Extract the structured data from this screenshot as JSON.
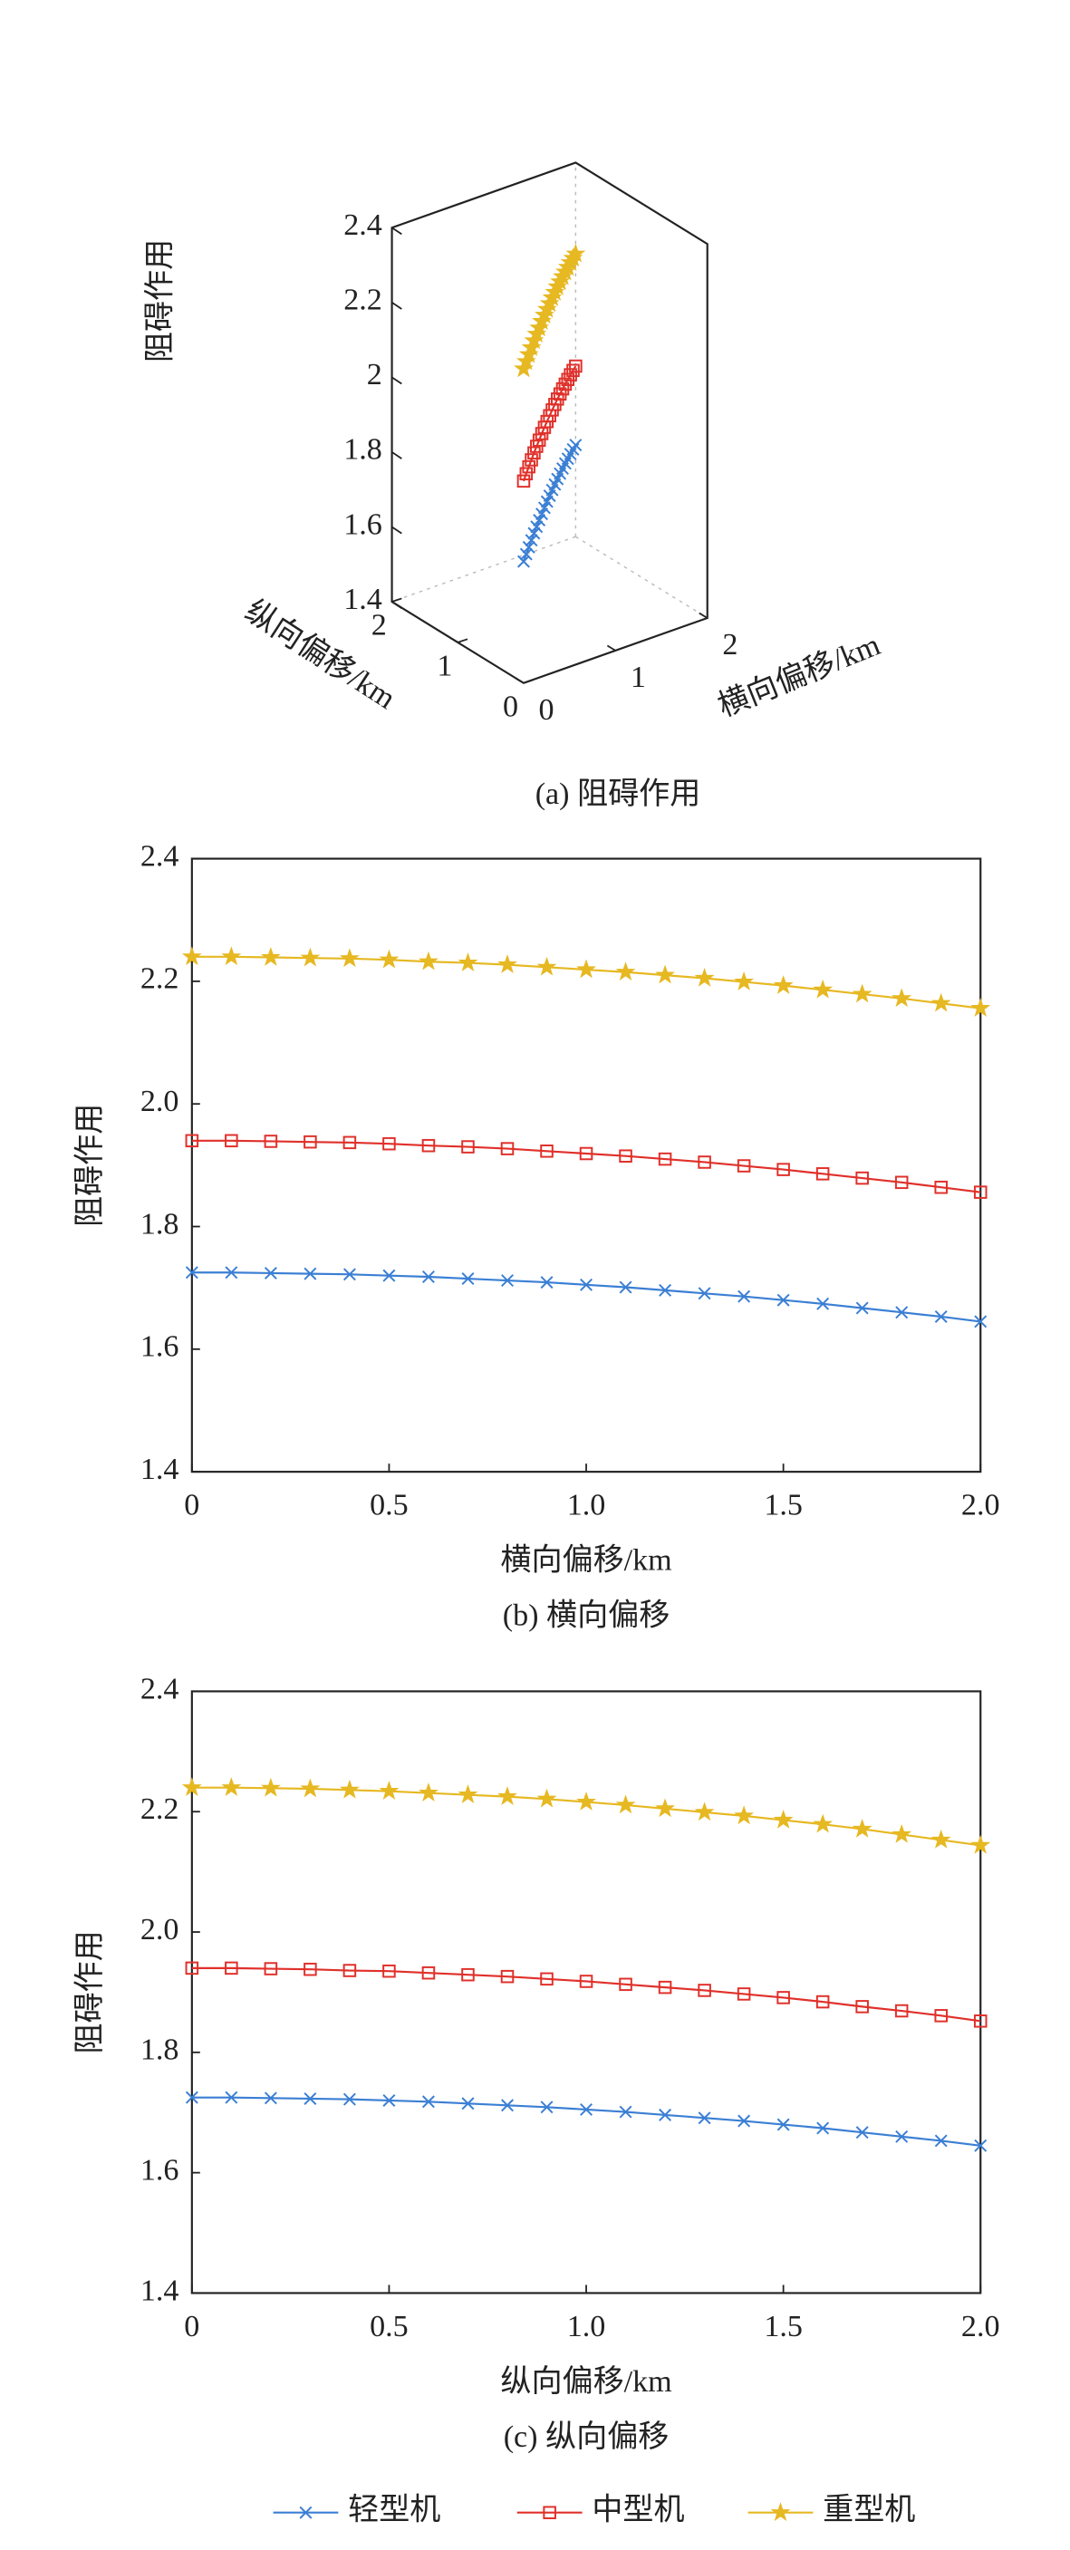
{
  "chart_data": [
    {
      "type": "line3d",
      "caption": "(a) 阻碍作用",
      "zlabel": "阻碍作用",
      "xlabel": "横向偏移/km",
      "ylabel": "纵向偏移/km",
      "x": [
        0,
        0.1,
        0.2,
        0.3,
        0.4,
        0.5,
        0.6,
        0.7,
        0.8,
        0.9,
        1.0,
        1.1,
        1.2,
        1.3,
        1.4,
        1.5,
        1.6,
        1.7,
        1.8,
        1.9,
        2.0
      ],
      "y": [
        0,
        0.1,
        0.2,
        0.3,
        0.4,
        0.5,
        0.6,
        0.7,
        0.8,
        0.9,
        1.0,
        1.1,
        1.2,
        1.3,
        1.4,
        1.5,
        1.6,
        1.7,
        1.8,
        1.9,
        2.0
      ],
      "series": [
        {
          "name": "轻型机",
          "color": "#3b7fd4",
          "marker": "x",
          "values": [
            1.725,
            1.725,
            1.724,
            1.723,
            1.722,
            1.72,
            1.718,
            1.715,
            1.712,
            1.709,
            1.705,
            1.701,
            1.696,
            1.691,
            1.686,
            1.68,
            1.674,
            1.667,
            1.66,
            1.653,
            1.645
          ]
        },
        {
          "name": "中型机",
          "color": "#e0302a",
          "marker": "square",
          "values": [
            1.94,
            1.94,
            1.939,
            1.938,
            1.937,
            1.935,
            1.932,
            1.93,
            1.927,
            1.923,
            1.919,
            1.915,
            1.91,
            1.905,
            1.899,
            1.893,
            1.886,
            1.879,
            1.872,
            1.864,
            1.856
          ]
        },
        {
          "name": "重型机",
          "color": "#e6b822",
          "marker": "star",
          "values": [
            2.24,
            2.24,
            2.239,
            2.238,
            2.237,
            2.235,
            2.232,
            2.23,
            2.227,
            2.223,
            2.219,
            2.215,
            2.21,
            2.205,
            2.199,
            2.193,
            2.186,
            2.179,
            2.172,
            2.164,
            2.156
          ]
        }
      ],
      "xlim": [
        0,
        2
      ],
      "xticks": [
        0,
        1,
        2
      ],
      "ylim": [
        0,
        2
      ],
      "yticks": [
        0,
        1,
        2
      ],
      "zlim": [
        1.4,
        2.4
      ],
      "zticks": [
        1.4,
        1.6,
        1.8,
        2.0,
        2.2,
        2.4
      ]
    },
    {
      "type": "line",
      "caption": "(b) 横向偏移",
      "xlabel": "横向偏移/km",
      "ylabel": "阻碍作用",
      "x": [
        0,
        0.1,
        0.2,
        0.3,
        0.4,
        0.5,
        0.6,
        0.7,
        0.8,
        0.9,
        1.0,
        1.1,
        1.2,
        1.3,
        1.4,
        1.5,
        1.6,
        1.7,
        1.8,
        1.9,
        2.0
      ],
      "series": [
        {
          "color": "#3b7fd4",
          "marker": "x",
          "values": [
            1.725,
            1.725,
            1.724,
            1.723,
            1.722,
            1.72,
            1.718,
            1.715,
            1.712,
            1.709,
            1.705,
            1.701,
            1.696,
            1.691,
            1.686,
            1.68,
            1.674,
            1.667,
            1.66,
            1.653,
            1.645
          ]
        },
        {
          "color": "#e0302a",
          "marker": "square",
          "values": [
            1.94,
            1.94,
            1.939,
            1.938,
            1.937,
            1.935,
            1.932,
            1.93,
            1.927,
            1.923,
            1.919,
            1.915,
            1.91,
            1.905,
            1.899,
            1.893,
            1.886,
            1.879,
            1.872,
            1.864,
            1.856
          ]
        },
        {
          "color": "#e6b822",
          "marker": "star",
          "values": [
            2.24,
            2.24,
            2.239,
            2.238,
            2.237,
            2.235,
            2.232,
            2.23,
            2.227,
            2.223,
            2.219,
            2.215,
            2.21,
            2.205,
            2.199,
            2.193,
            2.186,
            2.179,
            2.172,
            2.164,
            2.156
          ]
        }
      ],
      "xlim": [
        0,
        2
      ],
      "xticks": [
        0,
        {
          "value": 0.5,
          "label": "0.5"
        },
        {
          "value": 1,
          "label": "1.0"
        },
        {
          "value": 1.5,
          "label": "1.5"
        },
        {
          "value": 2,
          "label": "2.0"
        }
      ],
      "ylim": [
        1.4,
        2.4
      ],
      "yticks": [
        1.4,
        1.6,
        1.8,
        {
          "value": 2,
          "label": "2.0"
        },
        2.2,
        2.4
      ]
    },
    {
      "type": "line",
      "caption": "(c) 纵向偏移",
      "xlabel": "纵向偏移/km",
      "ylabel": "阻碍作用",
      "x": [
        0,
        0.1,
        0.2,
        0.3,
        0.4,
        0.5,
        0.6,
        0.7,
        0.8,
        0.9,
        1.0,
        1.1,
        1.2,
        1.3,
        1.4,
        1.5,
        1.6,
        1.7,
        1.8,
        1.9,
        2.0
      ],
      "series": [
        {
          "color": "#3b7fd4",
          "marker": "x",
          "values": [
            1.725,
            1.725,
            1.724,
            1.723,
            1.722,
            1.72,
            1.718,
            1.715,
            1.712,
            1.709,
            1.705,
            1.701,
            1.696,
            1.691,
            1.686,
            1.68,
            1.674,
            1.667,
            1.66,
            1.653,
            1.645
          ]
        },
        {
          "color": "#e0302a",
          "marker": "square",
          "values": [
            1.94,
            1.94,
            1.939,
            1.938,
            1.936,
            1.935,
            1.932,
            1.929,
            1.926,
            1.922,
            1.918,
            1.913,
            1.908,
            1.903,
            1.897,
            1.891,
            1.884,
            1.876,
            1.869,
            1.861,
            1.852
          ]
        },
        {
          "color": "#e6b822",
          "marker": "star",
          "values": [
            2.24,
            2.24,
            2.239,
            2.238,
            2.236,
            2.234,
            2.231,
            2.228,
            2.225,
            2.221,
            2.216,
            2.211,
            2.205,
            2.199,
            2.193,
            2.186,
            2.179,
            2.171,
            2.162,
            2.153,
            2.144
          ]
        }
      ],
      "xlim": [
        0,
        2
      ],
      "xticks": [
        0,
        {
          "value": 0.5,
          "label": "0.5"
        },
        {
          "value": 1,
          "label": "1.0"
        },
        {
          "value": 1.5,
          "label": "1.5"
        },
        {
          "value": 2,
          "label": "2.0"
        }
      ],
      "ylim": [
        1.4,
        2.4
      ],
      "yticks": [
        1.4,
        1.6,
        1.8,
        {
          "value": 2,
          "label": "2.0"
        },
        2.2,
        2.4
      ]
    }
  ]
}
